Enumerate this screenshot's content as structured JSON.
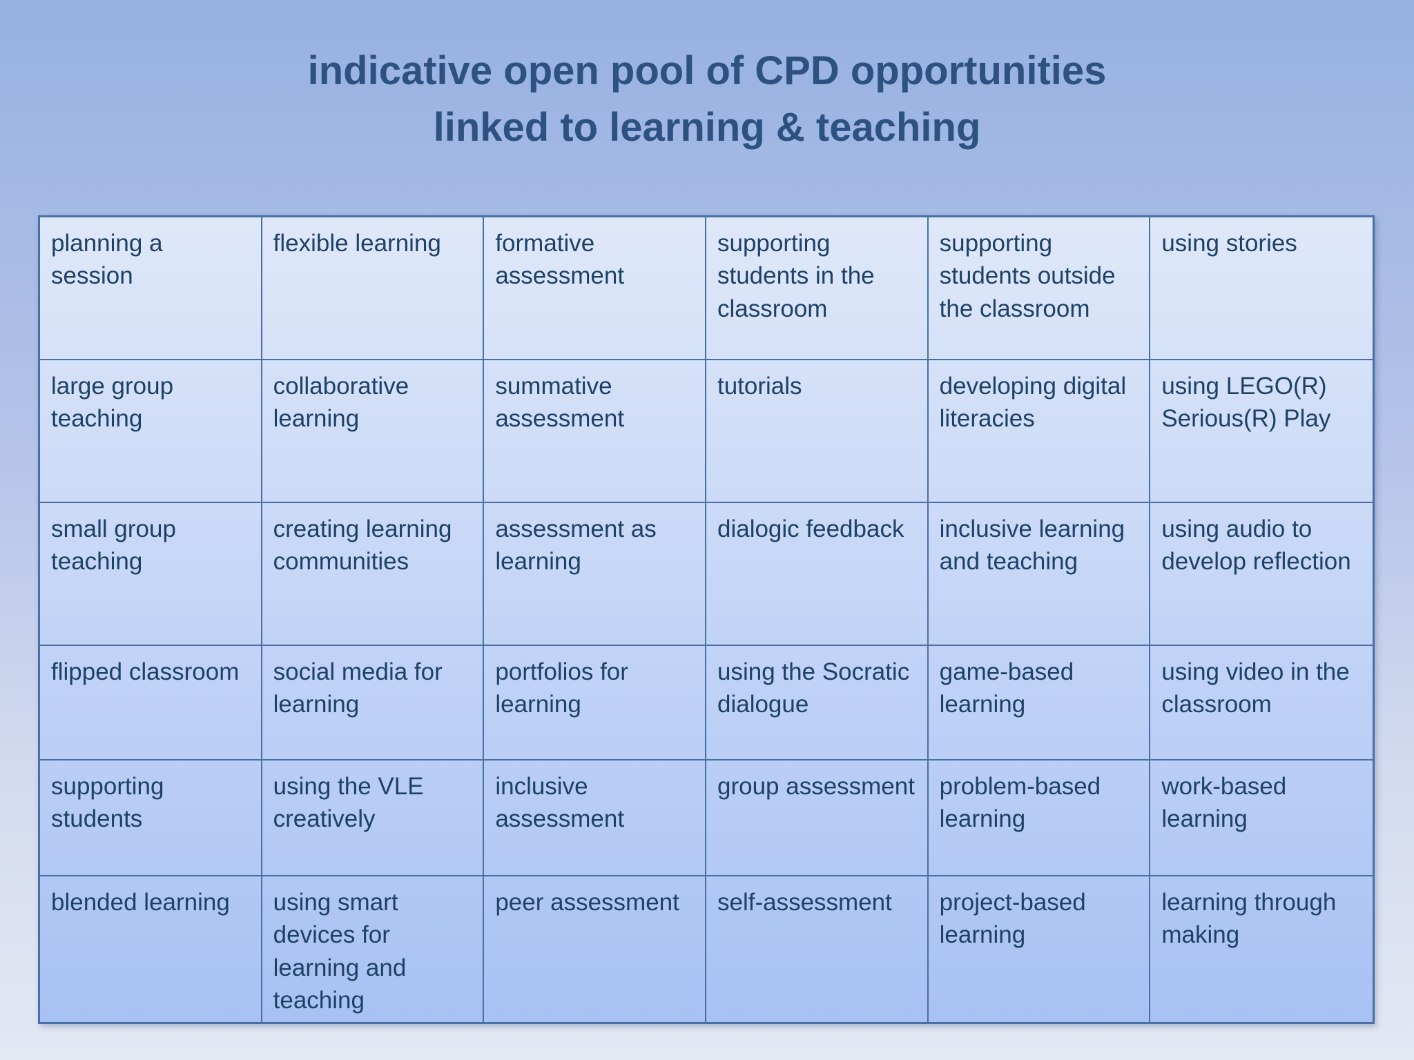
{
  "title": {
    "line1": "indicative open pool of CPD opportunities",
    "line2": "linked to learning & teaching"
  },
  "table": {
    "rows": [
      [
        "planning a session",
        "flexible learning",
        "formative assessment",
        "supporting students in the classroom",
        "supporting students outside the classroom",
        "using stories"
      ],
      [
        "large group teaching",
        "collaborative learning",
        "summative assessment",
        "tutorials",
        "developing digital literacies",
        "using LEGO(R) Serious(R) Play"
      ],
      [
        "small group teaching",
        "creating learning communities",
        "assessment as learning",
        "dialogic feedback",
        "inclusive learning and teaching",
        "using audio to develop reflection"
      ],
      [
        "flipped classroom",
        "social media for learning",
        "portfolios for learning",
        "using the Socratic dialogue",
        "game-based learning",
        "using video in the classroom"
      ],
      [
        "supporting students",
        "using the VLE creatively",
        "inclusive assessment",
        "group assessment",
        "problem-based learning",
        "work-based learning"
      ],
      [
        "blended learning",
        "using smart devices for learning and teaching",
        "peer assessment",
        "self-assessment",
        "project-based learning",
        "learning through making"
      ]
    ]
  },
  "colors": {
    "background_top": "#97b1e2",
    "background_bottom": "#e4e8f3",
    "table_fill_top": "#dfe8f9",
    "table_fill_bottom": "#a8c1f4",
    "table_border": "#4a6fa5",
    "title_text": "#2d5282",
    "cell_text": "#1e4166"
  }
}
